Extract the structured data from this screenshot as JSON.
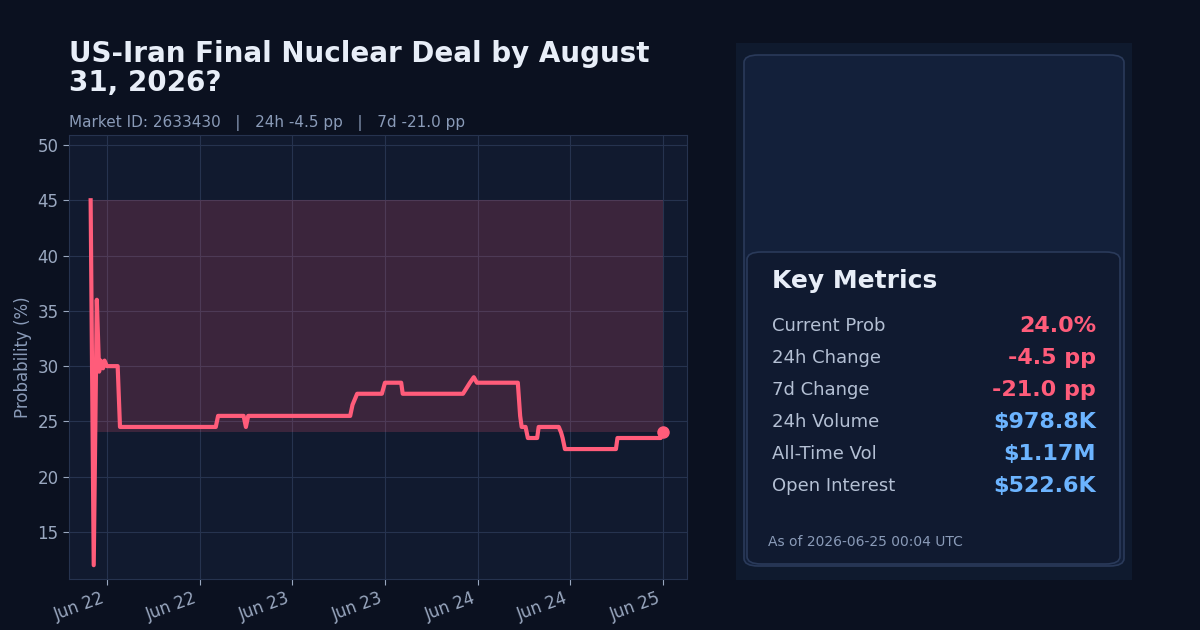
{
  "chart_data": {
    "type": "line",
    "title": "US-Iran Final Nuclear Deal by August 31, 2026?",
    "subtitle": "Market ID: 2633430   |   24h -4.5 pp   |   7d -21.0 pp",
    "y_label": "Probability (%)",
    "x": [
      -2.1,
      -1.7,
      -1.3,
      -1.0,
      -0.8,
      -0.5,
      -0.3,
      0,
      1.4,
      1.7,
      14.1,
      14.4,
      17.7,
      18.0,
      18.3,
      31.5,
      31.8,
      32.4,
      35.6,
      36.0,
      38.1,
      38.3,
      46.1,
      47.0,
      47.5,
      47.9,
      53.2,
      53.5,
      53.7,
      54.2,
      54.5,
      55.7,
      55.9,
      58.5,
      58.8,
      59.0,
      59.3,
      65.9,
      66.1,
      71.7,
      72.0
    ],
    "values": [
      45,
      12,
      36,
      29.5,
      30.5,
      29.8,
      30.5,
      30,
      30,
      24.5,
      24.5,
      25.5,
      25.5,
      24.5,
      25.5,
      25.5,
      26.5,
      27.5,
      27.5,
      28.5,
      28.5,
      27.5,
      27.5,
      28.5,
      29,
      28.5,
      28.5,
      25.5,
      24.5,
      24.5,
      23.5,
      23.5,
      24.5,
      24.5,
      24,
      23.5,
      22.5,
      22.5,
      23.5,
      23.5,
      24
    ],
    "color": "#ff5c7a",
    "xlim": [
      -4.9,
      75.1
    ],
    "xticks": [
      {
        "value": 0,
        "label": "Jun 22"
      },
      {
        "value": 12,
        "label": "Jun 22"
      },
      {
        "value": 24,
        "label": "Jun 23"
      },
      {
        "value": 36,
        "label": "Jun 23"
      },
      {
        "value": 48,
        "label": "Jun 24"
      },
      {
        "value": 60,
        "label": "Jun 24"
      },
      {
        "value": 72,
        "label": "Jun 25"
      }
    ],
    "ylim": [
      10.75,
      50.9
    ],
    "yticks": [
      15,
      20,
      25,
      30,
      35,
      40,
      45,
      50
    ],
    "grid": true
  },
  "panel": {
    "title": "Key Metrics",
    "metrics": [
      {
        "label": "Current Prob",
        "value": "24.0%",
        "color": "#ff5c7a"
      },
      {
        "label": "24h Change",
        "value": "-4.5 pp",
        "color": "#ff5c7a"
      },
      {
        "label": "7d Change",
        "value": "-21.0 pp",
        "color": "#ff5c7a"
      },
      {
        "label": "24h Volume",
        "value": "$978.8K",
        "color": "#6cb4ff"
      },
      {
        "label": "All-Time Vol",
        "value": "$1.17M",
        "color": "#6cb4ff"
      },
      {
        "label": "Open Interest",
        "value": "$522.6K",
        "color": "#6cb4ff"
      }
    ],
    "footer": "As of 2026-06-25 00:04 UTC"
  }
}
